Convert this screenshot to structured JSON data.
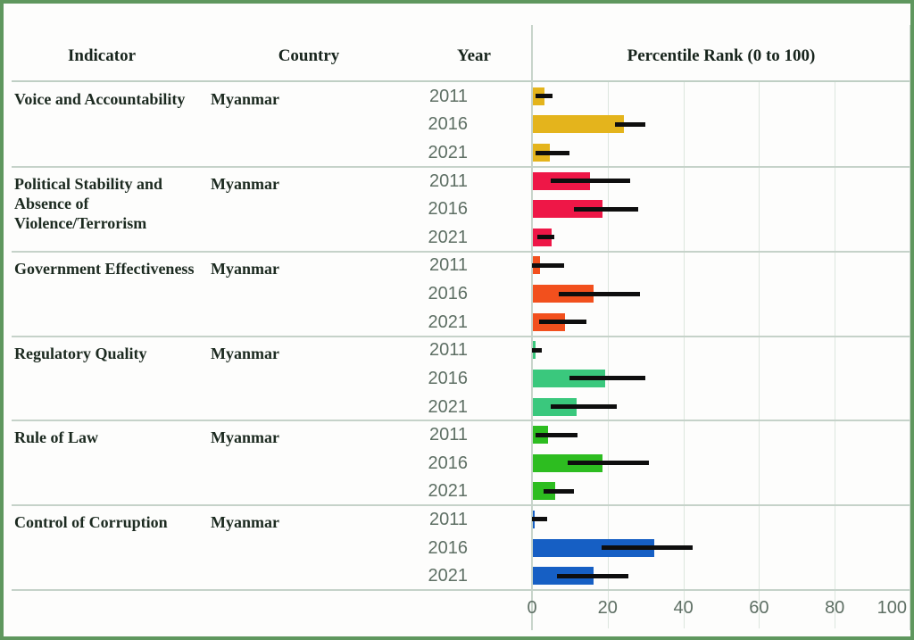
{
  "header": {
    "indicator": "Indicator",
    "country": "Country",
    "year": "Year",
    "percentile": "Percentile Rank (0 to 100)"
  },
  "colors": {
    "frame_border": "#5f975e",
    "header_text": "#17241c",
    "indicator_text": "#1c2a20",
    "axis_text": "#5e6f64",
    "gridline": "#dce6de",
    "separator": "#c5d2c9",
    "error_bar": "#0e0e0e"
  },
  "chart_data": {
    "type": "bar",
    "orientation": "horizontal",
    "title": "Percentile Rank (0 to 100)",
    "xlabel": "",
    "ylabel": "",
    "xlim": [
      0,
      100
    ],
    "x_ticks": [
      0,
      20,
      40,
      60,
      80,
      100
    ],
    "grid": true,
    "error_bars": true,
    "country": "Myanmar",
    "years": [
      "2011",
      "2016",
      "2021"
    ],
    "groups": [
      {
        "indicator": "Voice and Accountability",
        "indicator_lines": [
          "Voice and Accountability"
        ],
        "country": "Myanmar",
        "color": "#e4b41c",
        "bars": [
          {
            "year": "2011",
            "value": 3,
            "ci": [
              1,
              5.5
            ]
          },
          {
            "year": "2016",
            "value": 24,
            "ci": [
              22,
              30
            ]
          },
          {
            "year": "2021",
            "value": 4.5,
            "ci": [
              1,
              10
            ]
          }
        ]
      },
      {
        "indicator": "Political Stability and Absence of Violence/Terrorism",
        "indicator_lines": [
          "Political Stability and",
          "Absence of",
          "Violence/Terrorism"
        ],
        "country": "Myanmar",
        "color": "#ee1747",
        "bars": [
          {
            "year": "2011",
            "value": 15,
            "ci": [
              5,
              26
            ]
          },
          {
            "year": "2016",
            "value": 18.5,
            "ci": [
              11,
              28
            ]
          },
          {
            "year": "2021",
            "value": 5,
            "ci": [
              1.5,
              6
            ]
          }
        ]
      },
      {
        "indicator": "Government Effectiveness",
        "indicator_lines": [
          "Government Effectiveness"
        ],
        "country": "Myanmar",
        "color": "#f2501d",
        "bars": [
          {
            "year": "2011",
            "value": 2,
            "ci": [
              0,
              8.5
            ]
          },
          {
            "year": "2016",
            "value": 16,
            "ci": [
              7,
              28.5
            ]
          },
          {
            "year": "2021",
            "value": 8.5,
            "ci": [
              2,
              14.5
            ]
          }
        ]
      },
      {
        "indicator": "Regulatory Quality",
        "indicator_lines": [
          "Regulatory Quality"
        ],
        "country": "Myanmar",
        "color": "#3ac87d",
        "bars": [
          {
            "year": "2011",
            "value": 0.6,
            "ci": [
              0,
              2.5
            ]
          },
          {
            "year": "2016",
            "value": 19,
            "ci": [
              10,
              30
            ]
          },
          {
            "year": "2021",
            "value": 11.5,
            "ci": [
              5,
              22.5
            ]
          }
        ]
      },
      {
        "indicator": "Rule of Law",
        "indicator_lines": [
          "Rule of Law"
        ],
        "country": "Myanmar",
        "color": "#2dbd20",
        "bars": [
          {
            "year": "2011",
            "value": 4,
            "ci": [
              1,
              12
            ]
          },
          {
            "year": "2016",
            "value": 18.5,
            "ci": [
              9.5,
              31
            ]
          },
          {
            "year": "2021",
            "value": 6,
            "ci": [
              3,
              11
            ]
          }
        ]
      },
      {
        "indicator": "Control of Corruption",
        "indicator_lines": [
          "Control of Corruption"
        ],
        "country": "Myanmar",
        "color": "#165fc4",
        "bars": [
          {
            "year": "2011",
            "value": 0.5,
            "ci": [
              0,
              4
            ]
          },
          {
            "year": "2016",
            "value": 32,
            "ci": [
              18.5,
              42.5
            ]
          },
          {
            "year": "2021",
            "value": 16,
            "ci": [
              6.5,
              25.5
            ]
          }
        ]
      }
    ]
  }
}
